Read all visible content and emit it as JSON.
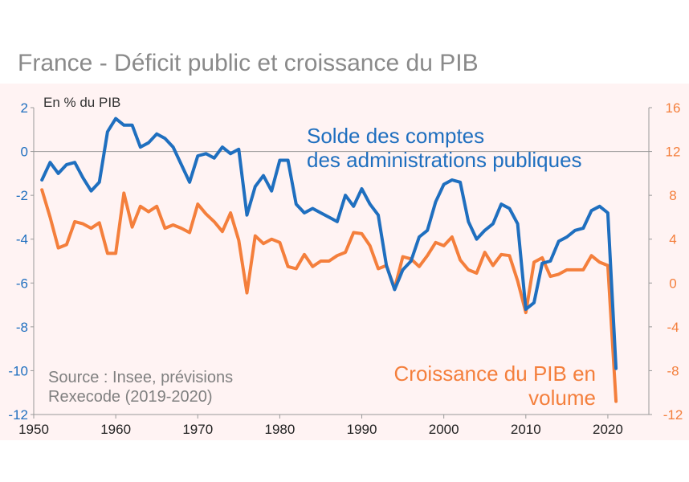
{
  "title": "France - Déficit public et croissance du PIB",
  "colors": {
    "deficit": "#1f6fbf",
    "growth": "#f47f3c",
    "plot_bg": "#fff3f3",
    "axis": "#999999"
  },
  "chart_data": {
    "type": "line",
    "title": "France - Déficit public et croissance du PIB",
    "ylabel": "En % du PIB",
    "ylim": [
      -12,
      2
    ],
    "y2lim": [
      -12,
      16
    ],
    "xlim": [
      1950,
      2025
    ],
    "xticks": [
      "1950",
      "1960",
      "1970",
      "1980",
      "1990",
      "2000",
      "2010",
      "2020"
    ],
    "yticks": [
      "2",
      "0",
      "-2",
      "-4",
      "-6",
      "-8",
      "-10",
      "-12"
    ],
    "y2ticks": [
      "16",
      "12",
      "8",
      "4",
      "0",
      "-4",
      "-8",
      "-12"
    ],
    "x": [
      1951,
      1952,
      1953,
      1954,
      1955,
      1956,
      1957,
      1958,
      1959,
      1960,
      1961,
      1962,
      1963,
      1964,
      1965,
      1966,
      1967,
      1968,
      1969,
      1970,
      1971,
      1972,
      1973,
      1974,
      1975,
      1976,
      1977,
      1978,
      1979,
      1980,
      1981,
      1982,
      1983,
      1984,
      1985,
      1986,
      1987,
      1988,
      1989,
      1990,
      1991,
      1992,
      1993,
      1994,
      1995,
      1996,
      1997,
      1998,
      1999,
      2000,
      2001,
      2002,
      2003,
      2004,
      2005,
      2006,
      2007,
      2008,
      2009,
      2010,
      2011,
      2012,
      2013,
      2014,
      2015,
      2016,
      2017,
      2018,
      2019,
      2020,
      2021
    ],
    "series": [
      {
        "name": "Solde des comptes des administrations publiques",
        "axis": "left",
        "values": [
          -1.3,
          -0.5,
          -1.0,
          -0.6,
          -0.5,
          -1.2,
          -1.8,
          -1.4,
          0.9,
          1.5,
          1.2,
          1.2,
          0.2,
          0.4,
          0.8,
          0.6,
          0.2,
          -0.6,
          -1.4,
          -0.2,
          -0.1,
          -0.3,
          0.2,
          -0.1,
          0.1,
          -2.9,
          -1.6,
          -1.1,
          -1.8,
          -0.4,
          -0.4,
          -2.4,
          -2.8,
          -2.6,
          -2.8,
          -3.0,
          -3.2,
          -2.0,
          -2.5,
          -1.7,
          -2.4,
          -2.9,
          -5.2,
          -6.3,
          -5.4,
          -5.0,
          -3.9,
          -3.6,
          -2.3,
          -1.5,
          -1.3,
          -1.4,
          -3.2,
          -4.0,
          -3.6,
          -3.3,
          -2.4,
          -2.6,
          -3.3,
          -7.2,
          -6.9,
          -5.1,
          -5.0,
          -4.1,
          -3.9,
          -3.6,
          -3.5,
          -2.7,
          -2.5,
          -2.8,
          -9.9
        ]
      },
      {
        "name": "Croissance du PIB en volume",
        "axis": "right",
        "values": [
          8.5,
          6.0,
          3.2,
          3.5,
          5.6,
          5.4,
          5.0,
          5.5,
          2.7,
          2.7,
          8.2,
          5.1,
          7.0,
          6.5,
          7.0,
          5.0,
          5.3,
          5.0,
          4.6,
          7.2,
          6.3,
          5.6,
          4.7,
          6.4,
          3.9,
          -0.9,
          4.3,
          3.6,
          4.0,
          3.7,
          1.5,
          1.3,
          2.6,
          1.5,
          2.0,
          2.0,
          2.5,
          2.8,
          4.6,
          4.5,
          3.4,
          1.3,
          1.6,
          -0.5,
          2.4,
          2.2,
          1.5,
          2.5,
          3.7,
          3.4,
          4.2,
          2.1,
          1.2,
          0.9,
          2.8,
          1.6,
          2.6,
          2.5,
          0.2,
          -2.7,
          1.9,
          2.3,
          0.6,
          0.8,
          1.2,
          1.2,
          1.2,
          2.5,
          1.9,
          1.6,
          -10.8
        ]
      }
    ],
    "annotations": {
      "deficit_label": [
        "Solde des comptes",
        "des administrations publiques"
      ],
      "growth_label": [
        "Croissance du PIB en",
        "volume"
      ],
      "source": [
        "Source : Insee, prévisions",
        "Rexecode (2019-2020)"
      ]
    }
  }
}
